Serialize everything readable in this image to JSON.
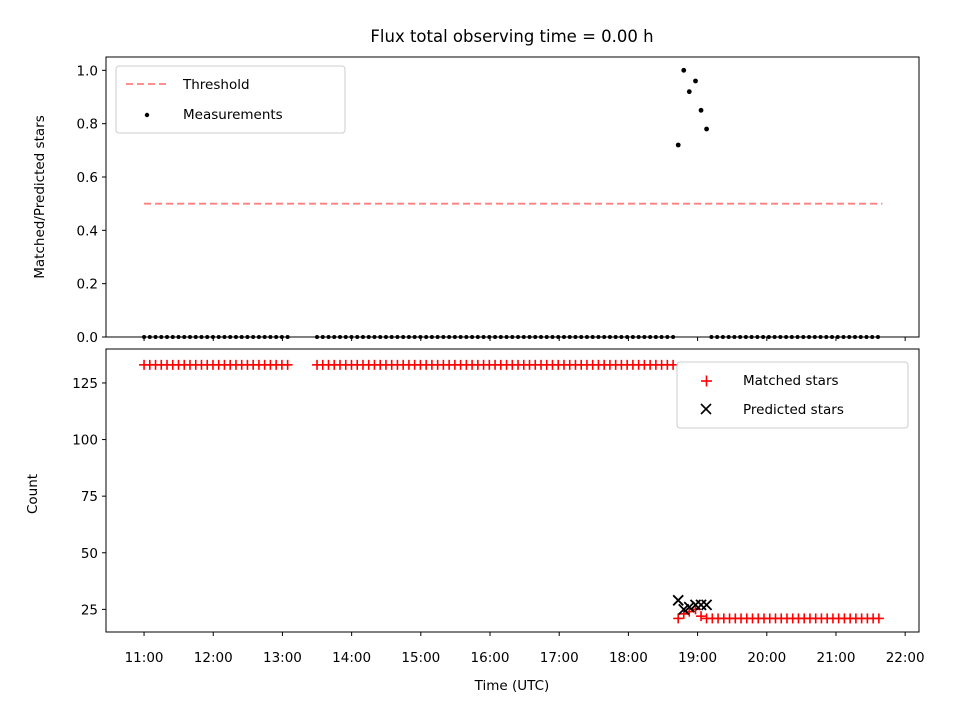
{
  "chart_data": {
    "title": "Flux total observing time = 0.00 h",
    "x_axis": {
      "label": "Time (UTC)",
      "ticks": [
        "11:00",
        "12:00",
        "13:00",
        "14:00",
        "15:00",
        "16:00",
        "17:00",
        "18:00",
        "19:00",
        "20:00",
        "21:00",
        "22:00"
      ],
      "range_hours": [
        10.45,
        22.2
      ]
    },
    "panels": [
      {
        "type": "scatter",
        "ylabel": "Matched/Predicted stars",
        "ylim": [
          0.0,
          1.05
        ],
        "yticks": [
          "0.0",
          "0.2",
          "0.4",
          "0.6",
          "0.8",
          "1.0"
        ],
        "legend": {
          "position": "top-left",
          "entries": [
            "Threshold",
            "Measurements"
          ]
        },
        "threshold": {
          "name": "Threshold",
          "value": 0.5,
          "x_start": 11.0,
          "x_end": 21.67,
          "color": "#ff7f7f",
          "style": "dashed"
        },
        "measurements": {
          "name": "Measurements",
          "color": "#000000",
          "zero_segments": [
            [
              11.0,
              13.1
            ],
            [
              13.5,
              18.7
            ],
            [
              19.2,
              21.67
            ]
          ],
          "zero_step_hours": 0.083,
          "points": [
            {
              "x": 18.72,
              "y": 0.72
            },
            {
              "x": 18.8,
              "y": 1.0
            },
            {
              "x": 18.88,
              "y": 0.92
            },
            {
              "x": 18.97,
              "y": 0.96
            },
            {
              "x": 19.05,
              "y": 0.85
            },
            {
              "x": 19.13,
              "y": 0.78
            }
          ]
        }
      },
      {
        "type": "scatter",
        "ylabel": "Count",
        "ylim": [
          15,
          140
        ],
        "yticks": [
          "25",
          "50",
          "75",
          "100",
          "125"
        ],
        "legend": {
          "position": "top-right",
          "entries": [
            "Matched stars",
            "Predicted stars"
          ]
        },
        "matched": {
          "name": "Matched stars",
          "color": "#ff0000",
          "marker": "plus",
          "segments": [
            {
              "x_start": 11.0,
              "x_end": 13.1,
              "y": 133
            },
            {
              "x_start": 13.5,
              "x_end": 18.65,
              "y": 133
            },
            {
              "x_start": 19.13,
              "x_end": 21.67,
              "y": 21
            }
          ],
          "step_hours": 0.083,
          "points": [
            {
              "x": 18.72,
              "y": 21
            },
            {
              "x": 18.8,
              "y": 23
            },
            {
              "x": 18.88,
              "y": 24
            },
            {
              "x": 18.97,
              "y": 25
            },
            {
              "x": 19.05,
              "y": 22
            }
          ]
        },
        "predicted": {
          "name": "Predicted stars",
          "color": "#000000",
          "marker": "x",
          "points": [
            {
              "x": 18.72,
              "y": 29
            },
            {
              "x": 18.8,
              "y": 25
            },
            {
              "x": 18.88,
              "y": 26
            },
            {
              "x": 18.97,
              "y": 27
            },
            {
              "x": 19.05,
              "y": 27
            },
            {
              "x": 19.13,
              "y": 27
            }
          ]
        }
      }
    ]
  }
}
